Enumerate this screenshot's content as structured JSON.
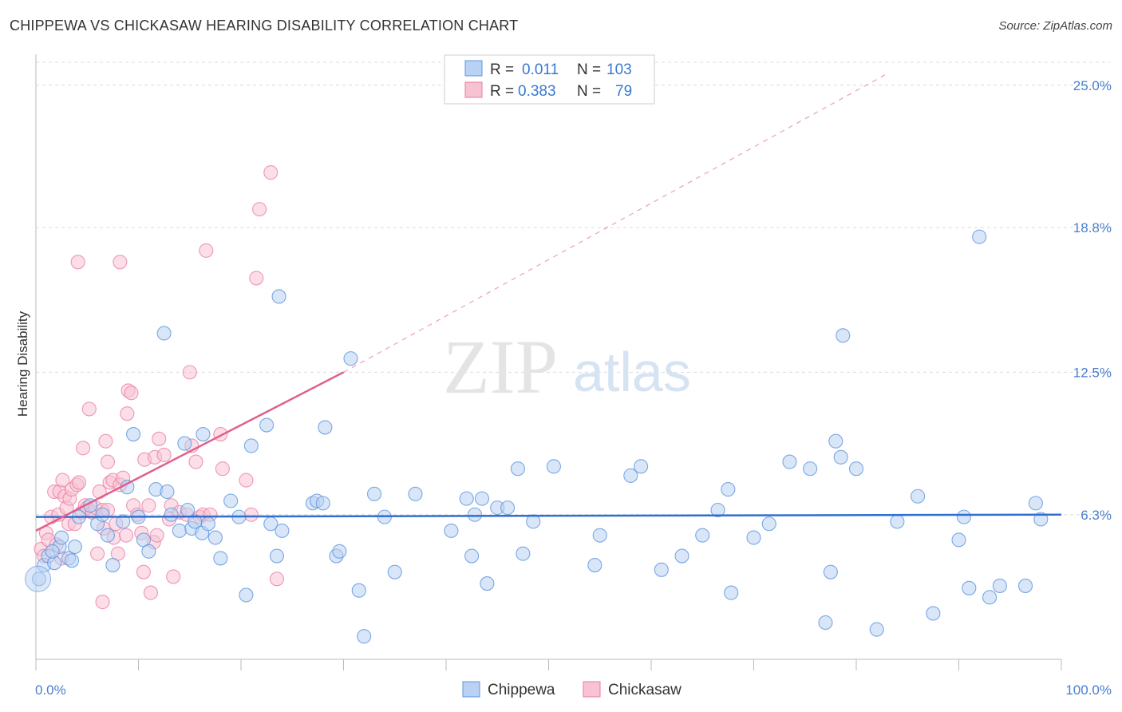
{
  "title": "CHIPPEWA VS CHICKASAW HEARING DISABILITY CORRELATION CHART",
  "source": "Source: ZipAtlas.com",
  "watermark": {
    "zip": "ZIP",
    "atlas": "atlas"
  },
  "colors": {
    "chippewa": "#5b95e0",
    "chippewa_fill": "#b9d2f3",
    "chickasaw": "#e97a9e",
    "chickasaw_fill": "#f7c3d3",
    "trend_blue": "#2f6fd0",
    "trend_pink": "#e0608a",
    "tick_text": "#4a7fcf"
  },
  "legend": {
    "rows": [
      {
        "r_label": "R =",
        "r_value": "0.011",
        "n_label": "N =",
        "n_value": "103"
      },
      {
        "r_label": "R =",
        "r_value": "0.383",
        "n_label": "N =",
        "n_value": "79"
      }
    ]
  },
  "chart_data": {
    "type": "scatter",
    "ylabel": "Hearing Disability",
    "xlim": [
      0,
      100
    ],
    "ylim": [
      0,
      26.0
    ],
    "x_ticks": [
      "0.0%",
      "100.0%"
    ],
    "y_ticks": [
      {
        "value": 6.3,
        "label": "6.3%"
      },
      {
        "value": 12.5,
        "label": "12.5%"
      },
      {
        "value": 18.8,
        "label": "18.8%"
      },
      {
        "value": 25.0,
        "label": "25.0%"
      }
    ],
    "grid": true,
    "series": [
      {
        "name": "Chippewa",
        "r": 0.011,
        "n": 103,
        "trend": {
          "x0": 0,
          "y0": 6.2,
          "x1": 100,
          "y1": 6.3
        },
        "points": [
          [
            0.3,
            3.5
          ],
          [
            0.8,
            4.1
          ],
          [
            1.2,
            4.5
          ],
          [
            1.8,
            4.2
          ],
          [
            2.3,
            4.9
          ],
          [
            2.5,
            5.3
          ],
          [
            3.2,
            4.4
          ],
          [
            3.5,
            4.3
          ],
          [
            4.2,
            6.2
          ],
          [
            5.3,
            6.7
          ],
          [
            6.0,
            5.9
          ],
          [
            6.5,
            6.3
          ],
          [
            7.0,
            5.4
          ],
          [
            7.5,
            4.1
          ],
          [
            8.5,
            6.0
          ],
          [
            8.9,
            7.5
          ],
          [
            9.5,
            9.8
          ],
          [
            10.0,
            6.2
          ],
          [
            10.5,
            5.2
          ],
          [
            11.0,
            4.7
          ],
          [
            11.7,
            7.4
          ],
          [
            12.5,
            14.2
          ],
          [
            12.8,
            7.3
          ],
          [
            13.2,
            6.3
          ],
          [
            14.0,
            5.6
          ],
          [
            14.5,
            9.4
          ],
          [
            14.8,
            6.5
          ],
          [
            15.2,
            5.7
          ],
          [
            15.5,
            6.0
          ],
          [
            16.2,
            5.5
          ],
          [
            16.3,
            9.8
          ],
          [
            16.8,
            5.9
          ],
          [
            17.5,
            5.3
          ],
          [
            18.0,
            4.4
          ],
          [
            19.0,
            6.9
          ],
          [
            19.8,
            6.2
          ],
          [
            20.5,
            2.8
          ],
          [
            21.0,
            9.3
          ],
          [
            22.5,
            10.2
          ],
          [
            22.9,
            5.9
          ],
          [
            23.5,
            4.5
          ],
          [
            23.7,
            15.8
          ],
          [
            24.0,
            5.6
          ],
          [
            27.0,
            6.8
          ],
          [
            27.4,
            6.9
          ],
          [
            28.0,
            6.8
          ],
          [
            28.2,
            10.1
          ],
          [
            29.3,
            4.5
          ],
          [
            29.6,
            4.7
          ],
          [
            30.7,
            13.1
          ],
          [
            31.5,
            3.0
          ],
          [
            32.0,
            1.0
          ],
          [
            33.0,
            7.2
          ],
          [
            34.0,
            6.2
          ],
          [
            35.0,
            3.8
          ],
          [
            37.0,
            7.2
          ],
          [
            40.5,
            5.6
          ],
          [
            42.0,
            7.0
          ],
          [
            42.5,
            4.5
          ],
          [
            42.8,
            6.3
          ],
          [
            43.5,
            7.0
          ],
          [
            44.0,
            3.3
          ],
          [
            45.0,
            6.6
          ],
          [
            46.0,
            6.6
          ],
          [
            47.0,
            8.3
          ],
          [
            47.5,
            4.6
          ],
          [
            48.5,
            6.0
          ],
          [
            50.5,
            8.4
          ],
          [
            54.5,
            4.1
          ],
          [
            55.0,
            5.4
          ],
          [
            58.0,
            8.0
          ],
          [
            59.0,
            8.4
          ],
          [
            61.0,
            3.9
          ],
          [
            63.0,
            4.5
          ],
          [
            65.0,
            5.4
          ],
          [
            66.5,
            6.5
          ],
          [
            67.5,
            7.4
          ],
          [
            67.8,
            2.9
          ],
          [
            70.0,
            5.3
          ],
          [
            71.5,
            5.9
          ],
          [
            73.5,
            8.6
          ],
          [
            75.5,
            8.3
          ],
          [
            77.0,
            1.6
          ],
          [
            77.5,
            3.8
          ],
          [
            78.0,
            9.5
          ],
          [
            78.5,
            8.8
          ],
          [
            78.7,
            14.1
          ],
          [
            80.0,
            8.3
          ],
          [
            82.0,
            1.3
          ],
          [
            84.0,
            6.0
          ],
          [
            86.0,
            7.1
          ],
          [
            87.5,
            2.0
          ],
          [
            90.0,
            5.2
          ],
          [
            90.5,
            6.2
          ],
          [
            91.0,
            3.1
          ],
          [
            92.0,
            18.4
          ],
          [
            93.0,
            2.7
          ],
          [
            94.0,
            3.2
          ],
          [
            96.5,
            3.2
          ],
          [
            97.5,
            6.8
          ],
          [
            98.0,
            6.1
          ],
          [
            1.6,
            4.7
          ],
          [
            3.8,
            4.9
          ]
        ]
      },
      {
        "name": "Chickasaw",
        "r": 0.383,
        "n": 79,
        "trend": {
          "x0": 0,
          "y0": 5.6,
          "x1": 30,
          "y1": 12.5,
          "ext_x1": 83,
          "ext_y1": 25.5
        },
        "points": [
          [
            0.5,
            4.8
          ],
          [
            0.8,
            4.5
          ],
          [
            1.0,
            5.5
          ],
          [
            1.2,
            5.2
          ],
          [
            1.5,
            6.2
          ],
          [
            1.8,
            7.3
          ],
          [
            2.0,
            5.0
          ],
          [
            2.2,
            6.3
          ],
          [
            2.3,
            7.3
          ],
          [
            2.5,
            4.4
          ],
          [
            2.6,
            7.8
          ],
          [
            2.8,
            7.1
          ],
          [
            3.0,
            6.6
          ],
          [
            3.2,
            5.9
          ],
          [
            3.3,
            7.0
          ],
          [
            3.5,
            7.4
          ],
          [
            3.8,
            5.9
          ],
          [
            4.0,
            7.6
          ],
          [
            4.1,
            17.3
          ],
          [
            4.2,
            7.7
          ],
          [
            4.5,
            6.4
          ],
          [
            4.6,
            9.2
          ],
          [
            4.8,
            6.7
          ],
          [
            5.0,
            6.6
          ],
          [
            5.2,
            10.9
          ],
          [
            5.5,
            6.4
          ],
          [
            5.8,
            6.6
          ],
          [
            6.0,
            4.6
          ],
          [
            6.2,
            7.3
          ],
          [
            6.5,
            2.5
          ],
          [
            6.5,
            6.5
          ],
          [
            6.6,
            5.7
          ],
          [
            6.8,
            9.5
          ],
          [
            7.0,
            6.5
          ],
          [
            7.0,
            8.6
          ],
          [
            7.2,
            7.7
          ],
          [
            7.5,
            7.8
          ],
          [
            7.6,
            5.3
          ],
          [
            7.8,
            5.9
          ],
          [
            8.0,
            4.6
          ],
          [
            8.2,
            7.6
          ],
          [
            8.2,
            17.3
          ],
          [
            8.5,
            7.9
          ],
          [
            8.8,
            5.4
          ],
          [
            8.9,
            10.7
          ],
          [
            9.0,
            11.7
          ],
          [
            9.3,
            11.6
          ],
          [
            9.5,
            6.7
          ],
          [
            9.9,
            6.3
          ],
          [
            10.3,
            5.5
          ],
          [
            10.5,
            3.8
          ],
          [
            10.6,
            8.7
          ],
          [
            11.0,
            6.7
          ],
          [
            11.2,
            2.9
          ],
          [
            11.5,
            5.1
          ],
          [
            11.6,
            8.8
          ],
          [
            11.8,
            5.4
          ],
          [
            12.0,
            9.6
          ],
          [
            12.5,
            8.9
          ],
          [
            13.0,
            6.1
          ],
          [
            13.2,
            6.7
          ],
          [
            13.4,
            3.6
          ],
          [
            14.0,
            6.4
          ],
          [
            14.7,
            6.3
          ],
          [
            15.0,
            12.5
          ],
          [
            15.2,
            9.3
          ],
          [
            15.6,
            8.6
          ],
          [
            16.0,
            6.2
          ],
          [
            16.3,
            6.3
          ],
          [
            16.6,
            17.8
          ],
          [
            17.0,
            6.3
          ],
          [
            18.0,
            9.8
          ],
          [
            18.2,
            8.3
          ],
          [
            20.5,
            7.8
          ],
          [
            21.0,
            6.3
          ],
          [
            21.5,
            16.6
          ],
          [
            21.8,
            19.6
          ],
          [
            22.9,
            21.2
          ],
          [
            23.5,
            3.5
          ]
        ]
      }
    ]
  },
  "bottom_legend": [
    {
      "label": "Chippewa"
    },
    {
      "label": "Chickasaw"
    }
  ]
}
